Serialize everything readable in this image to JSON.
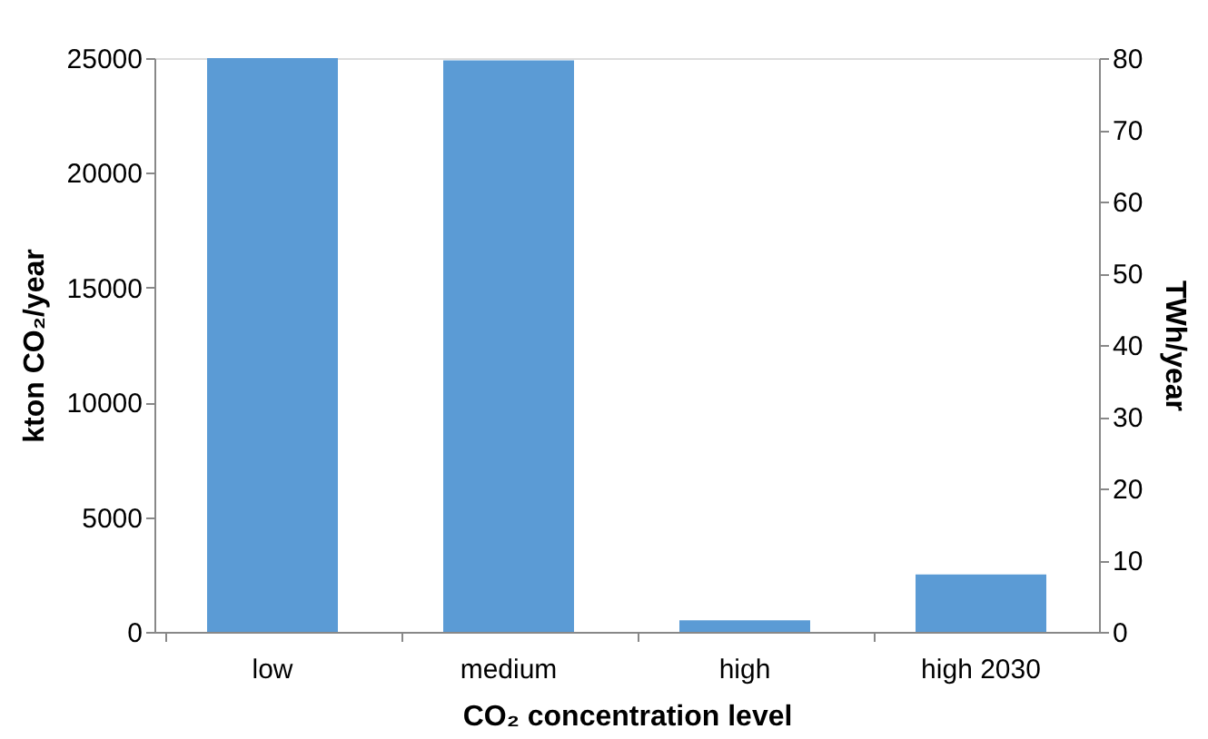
{
  "chart_data": {
    "type": "bar",
    "xlabel": "CO₂ concentration level",
    "ylabel": "kton CO₂/year",
    "y2label": "TWh/year",
    "categories": [
      "low",
      "medium",
      "high",
      "high 2030"
    ],
    "series": [
      {
        "color": "#5b9bd5",
        "values": [
          25000,
          24900,
          500,
          2500
        ]
      }
    ],
    "ylim": [
      0,
      25000
    ],
    "yticks": [
      0,
      5000,
      10000,
      15000,
      20000,
      25000
    ],
    "y2lim": [
      0,
      80
    ],
    "y2ticks": [
      0,
      10,
      20,
      30,
      40,
      50,
      60,
      70,
      80
    ],
    "grid": false
  }
}
